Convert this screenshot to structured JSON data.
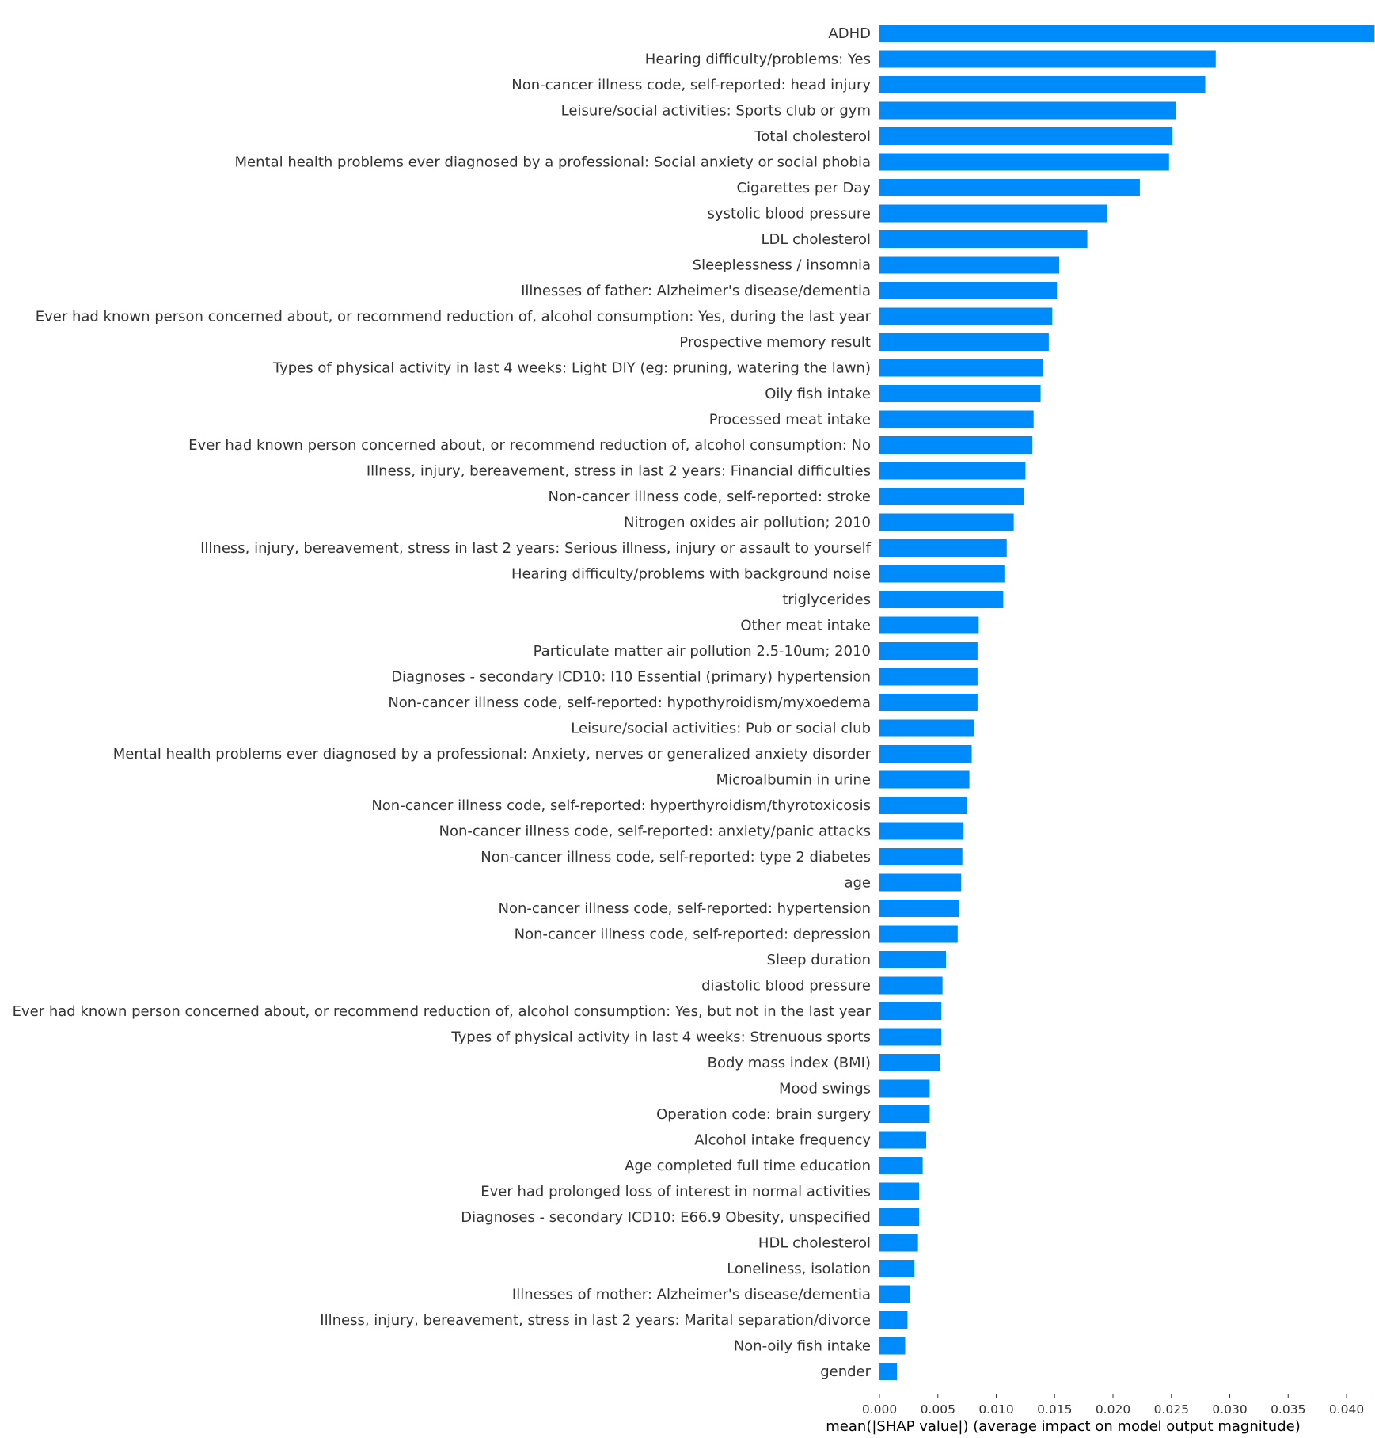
{
  "chart_data": {
    "type": "bar",
    "orientation": "horizontal",
    "xlabel": "mean(|SHAP value|) (average impact on model output magnitude)",
    "ylabel": "",
    "xlim": [
      0,
      0.0445
    ],
    "x_ticks": [
      "0.000",
      "0.005",
      "0.010",
      "0.015",
      "0.020",
      "0.025",
      "0.030",
      "0.035",
      "0.040"
    ],
    "grid": false,
    "bar_color": "#008bfb",
    "categories": [
      "ADHD",
      "Hearing difficulty/problems: Yes",
      "Non-cancer illness code, self-reported: head injury",
      "Leisure/social activities: Sports club or gym",
      "Total cholesterol",
      "Mental health problems ever diagnosed by a professional: Social anxiety or social phobia",
      "Cigarettes per Day",
      "systolic blood pressure",
      "LDL cholesterol",
      "Sleeplessness / insomnia",
      "Illnesses of father: Alzheimer's disease/dementia",
      "Ever had known person concerned about, or recommend reduction of, alcohol consumption: Yes, during the last year",
      "Prospective memory result",
      "Types of physical activity in last 4 weeks: Light DIY (eg: pruning, watering the lawn)",
      "Oily fish intake",
      "Processed meat intake",
      "Ever had known person concerned about, or recommend reduction of, alcohol consumption: No",
      "Illness, injury, bereavement, stress in last 2 years: Financial difficulties",
      "Non-cancer illness code, self-reported: stroke",
      "Nitrogen oxides air pollution; 2010",
      "Illness, injury, bereavement, stress in last 2 years: Serious illness, injury or assault to yourself",
      "Hearing difficulty/problems with background noise",
      "triglycerides",
      "Other meat intake",
      "Particulate matter air pollution 2.5-10um; 2010",
      "Diagnoses - secondary ICD10: I10 Essential (primary) hypertension",
      "Non-cancer illness code, self-reported: hypothyroidism/myxoedema",
      "Leisure/social activities: Pub or social club",
      "Mental health problems ever diagnosed by a professional: Anxiety, nerves or generalized anxiety disorder",
      "Microalbumin in urine",
      "Non-cancer illness code, self-reported: hyperthyroidism/thyrotoxicosis",
      "Non-cancer illness code, self-reported: anxiety/panic attacks",
      "Non-cancer illness code, self-reported: type 2 diabetes",
      "age",
      "Non-cancer illness code, self-reported: hypertension",
      "Non-cancer illness code, self-reported: depression",
      "Sleep duration",
      "diastolic blood pressure",
      "Ever had known person concerned about, or recommend reduction of, alcohol consumption: Yes, but not in the last year",
      "Types of physical activity in last 4 weeks: Strenuous sports",
      "Body mass index (BMI)",
      "Mood swings",
      "Operation code: brain surgery",
      "Alcohol intake frequency",
      "Age completed full time education",
      "Ever had prolonged loss of interest in normal activities",
      "Diagnoses - secondary ICD10: E66.9 Obesity, unspecified",
      "HDL cholesterol",
      "Loneliness, isolation",
      "Illnesses of mother: Alzheimer's disease/dementia",
      "Illness, injury, bereavement, stress in last 2 years: Marital separation/divorce",
      "Non-oily fish intake",
      "gender"
    ],
    "values": [
      0.0424,
      0.0288,
      0.0279,
      0.0254,
      0.0251,
      0.0248,
      0.0223,
      0.0195,
      0.0178,
      0.0154,
      0.0152,
      0.0148,
      0.0145,
      0.014,
      0.0138,
      0.0132,
      0.0131,
      0.0125,
      0.0124,
      0.0115,
      0.0109,
      0.0107,
      0.0106,
      0.0085,
      0.0084,
      0.0084,
      0.0084,
      0.0081,
      0.0079,
      0.0077,
      0.0075,
      0.0072,
      0.0071,
      0.007,
      0.0068,
      0.0067,
      0.0057,
      0.0054,
      0.0053,
      0.0053,
      0.0052,
      0.0043,
      0.0043,
      0.004,
      0.0037,
      0.0034,
      0.0034,
      0.0033,
      0.003,
      0.0026,
      0.0024,
      0.0022,
      0.0015
    ]
  }
}
